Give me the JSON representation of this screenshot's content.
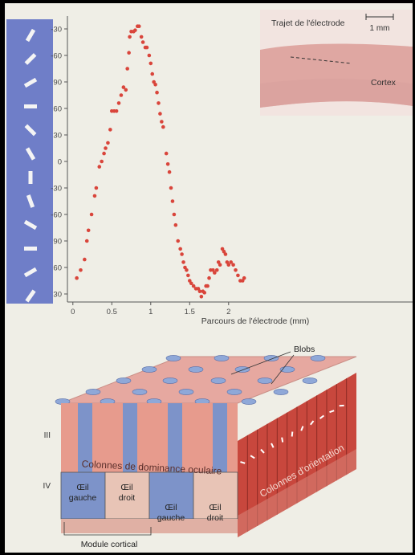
{
  "figure_top": {
    "orientation_bar_color": "#6f7ec8",
    "dot_color": "#d9453b",
    "inset": {
      "trajectory_label": "Trajet de l'électrode",
      "scale_label": "1 mm",
      "cortex_label": "Cortex"
    }
  },
  "chart_data": {
    "type": "scatter",
    "xlabel": "Parcours de l'électrode (mm)",
    "ylabel": "",
    "x_ticks": [
      "0",
      "0.5",
      "1",
      "1.5",
      "2"
    ],
    "y_ticks": [
      "-30",
      "-60",
      "90",
      "60",
      "30",
      "0",
      "-30",
      "-60",
      "90",
      "60",
      "30"
    ],
    "xlim": [
      0,
      2.2
    ],
    "y_note": "preferred orientation (degrees), wrapped axis; values encoded as tick-step positions 0 (bottom '30') to 10 (top '-30')",
    "series": [
      {
        "points": [
          [
            0.05,
            0.6
          ],
          [
            0.1,
            0.9
          ],
          [
            0.15,
            1.3
          ],
          [
            0.18,
            2.0
          ],
          [
            0.2,
            2.4
          ],
          [
            0.24,
            3.0
          ],
          [
            0.28,
            3.7
          ],
          [
            0.3,
            4.0
          ],
          [
            0.34,
            4.8
          ],
          [
            0.37,
            5.0
          ],
          [
            0.4,
            5.3
          ],
          [
            0.42,
            5.5
          ],
          [
            0.45,
            5.7
          ],
          [
            0.48,
            6.2
          ],
          [
            0.5,
            6.9
          ],
          [
            0.53,
            6.9
          ],
          [
            0.56,
            6.9
          ],
          [
            0.59,
            7.2
          ],
          [
            0.62,
            7.5
          ],
          [
            0.65,
            7.8
          ],
          [
            0.68,
            7.7
          ],
          [
            0.7,
            8.5
          ],
          [
            0.72,
            9.1
          ],
          [
            0.73,
            9.7
          ],
          [
            0.75,
            9.9
          ],
          [
            0.78,
            9.9
          ],
          [
            0.8,
            9.95
          ],
          [
            0.83,
            10.1
          ],
          [
            0.85,
            10.1
          ],
          [
            0.88,
            9.7
          ],
          [
            0.9,
            9.5
          ],
          [
            0.93,
            9.3
          ],
          [
            0.95,
            9.3
          ],
          [
            0.98,
            9.0
          ],
          [
            1.0,
            8.7
          ],
          [
            1.02,
            8.3
          ],
          [
            1.04,
            8.0
          ],
          [
            1.06,
            7.9
          ],
          [
            1.08,
            7.6
          ],
          [
            1.1,
            7.2
          ],
          [
            1.12,
            6.8
          ],
          [
            1.14,
            6.5
          ],
          [
            1.16,
            6.3
          ],
          [
            1.2,
            5.3
          ],
          [
            1.22,
            4.9
          ],
          [
            1.24,
            4.6
          ],
          [
            1.26,
            4.0
          ],
          [
            1.28,
            3.5
          ],
          [
            1.3,
            3.0
          ],
          [
            1.32,
            2.6
          ],
          [
            1.35,
            2.0
          ],
          [
            1.38,
            1.7
          ],
          [
            1.4,
            1.5
          ],
          [
            1.42,
            1.2
          ],
          [
            1.44,
            1.0
          ],
          [
            1.46,
            0.9
          ],
          [
            1.48,
            0.7
          ],
          [
            1.5,
            0.5
          ],
          [
            1.52,
            0.4
          ],
          [
            1.55,
            0.3
          ],
          [
            1.58,
            0.2
          ],
          [
            1.61,
            0.2
          ],
          [
            1.63,
            0.1
          ],
          [
            1.65,
            -0.1
          ],
          [
            1.67,
            0.1
          ],
          [
            1.69,
            0.05
          ],
          [
            1.71,
            0.3
          ],
          [
            1.73,
            0.3
          ],
          [
            1.75,
            0.6
          ],
          [
            1.77,
            0.9
          ],
          [
            1.8,
            0.9
          ],
          [
            1.82,
            0.8
          ],
          [
            1.85,
            0.9
          ],
          [
            1.87,
            1.2
          ],
          [
            1.89,
            1.1
          ],
          [
            1.92,
            1.7
          ],
          [
            1.94,
            1.6
          ],
          [
            1.96,
            1.5
          ],
          [
            1.98,
            1.2
          ],
          [
            2.0,
            1.1
          ],
          [
            2.03,
            1.2
          ],
          [
            2.06,
            1.1
          ],
          [
            2.09,
            0.9
          ],
          [
            2.12,
            0.7
          ],
          [
            2.15,
            0.5
          ],
          [
            2.18,
            0.5
          ],
          [
            2.2,
            0.6
          ]
        ]
      }
    ]
  },
  "figure_bottom": {
    "blobs_label": "Blobs",
    "layer_III": "III",
    "layer_IV": "IV",
    "ocular_columns_label": "Colonnes de dominance oculaire",
    "orientation_columns_label": "Colonnes d'orientation",
    "cells": [
      {
        "line1": "Œil",
        "line2": "gauche"
      },
      {
        "line1": "Œil",
        "line2": "droit"
      },
      {
        "line1": "Œil",
        "line2": "gauche"
      },
      {
        "line1": "Œil",
        "line2": "droit"
      }
    ],
    "module_label": "Module cortical",
    "colors": {
      "top_face": "#e6a8a0",
      "front_face": "#e79b8d",
      "left_eye": "#7d93c9",
      "right_eye": "#e8c4b6",
      "side_face": "#c8473d",
      "blob": "#8fa8d8"
    }
  }
}
